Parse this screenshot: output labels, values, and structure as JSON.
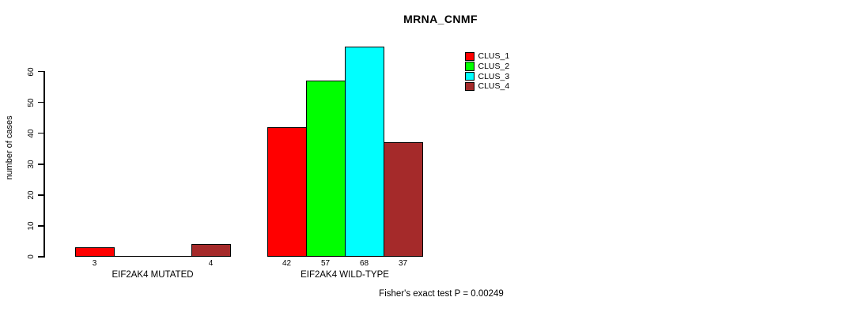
{
  "chart_data": {
    "type": "bar",
    "title": "MRNA_CNMF",
    "ylabel": "number of cases",
    "xlabel": "",
    "categories": [
      "EIF2AK4 MUTATED",
      "EIF2AK4 WILD-TYPE"
    ],
    "series": [
      {
        "name": "CLUS_1",
        "color": "#ff0000",
        "values": [
          3,
          42
        ]
      },
      {
        "name": "CLUS_2",
        "color": "#00ff00",
        "values": [
          0,
          57
        ]
      },
      {
        "name": "CLUS_3",
        "color": "#00ffff",
        "values": [
          0,
          68
        ]
      },
      {
        "name": "CLUS_4",
        "color": "#a52a2a",
        "values": [
          4,
          37
        ]
      }
    ],
    "yticks": [
      0,
      10,
      20,
      30,
      40,
      50,
      60
    ],
    "ylim": [
      0,
      68
    ],
    "grid": false,
    "legend_position": "top-right",
    "bar_value_labels": {
      "EIF2AK4 MUTATED": [
        3,
        null,
        null,
        4
      ],
      "EIF2AK4 WILD-TYPE": [
        42,
        57,
        68,
        37
      ]
    },
    "annotation": "Fisher's exact test P = 0.00249",
    "axis_color": "#000000",
    "bar_border_color": "#000000"
  }
}
